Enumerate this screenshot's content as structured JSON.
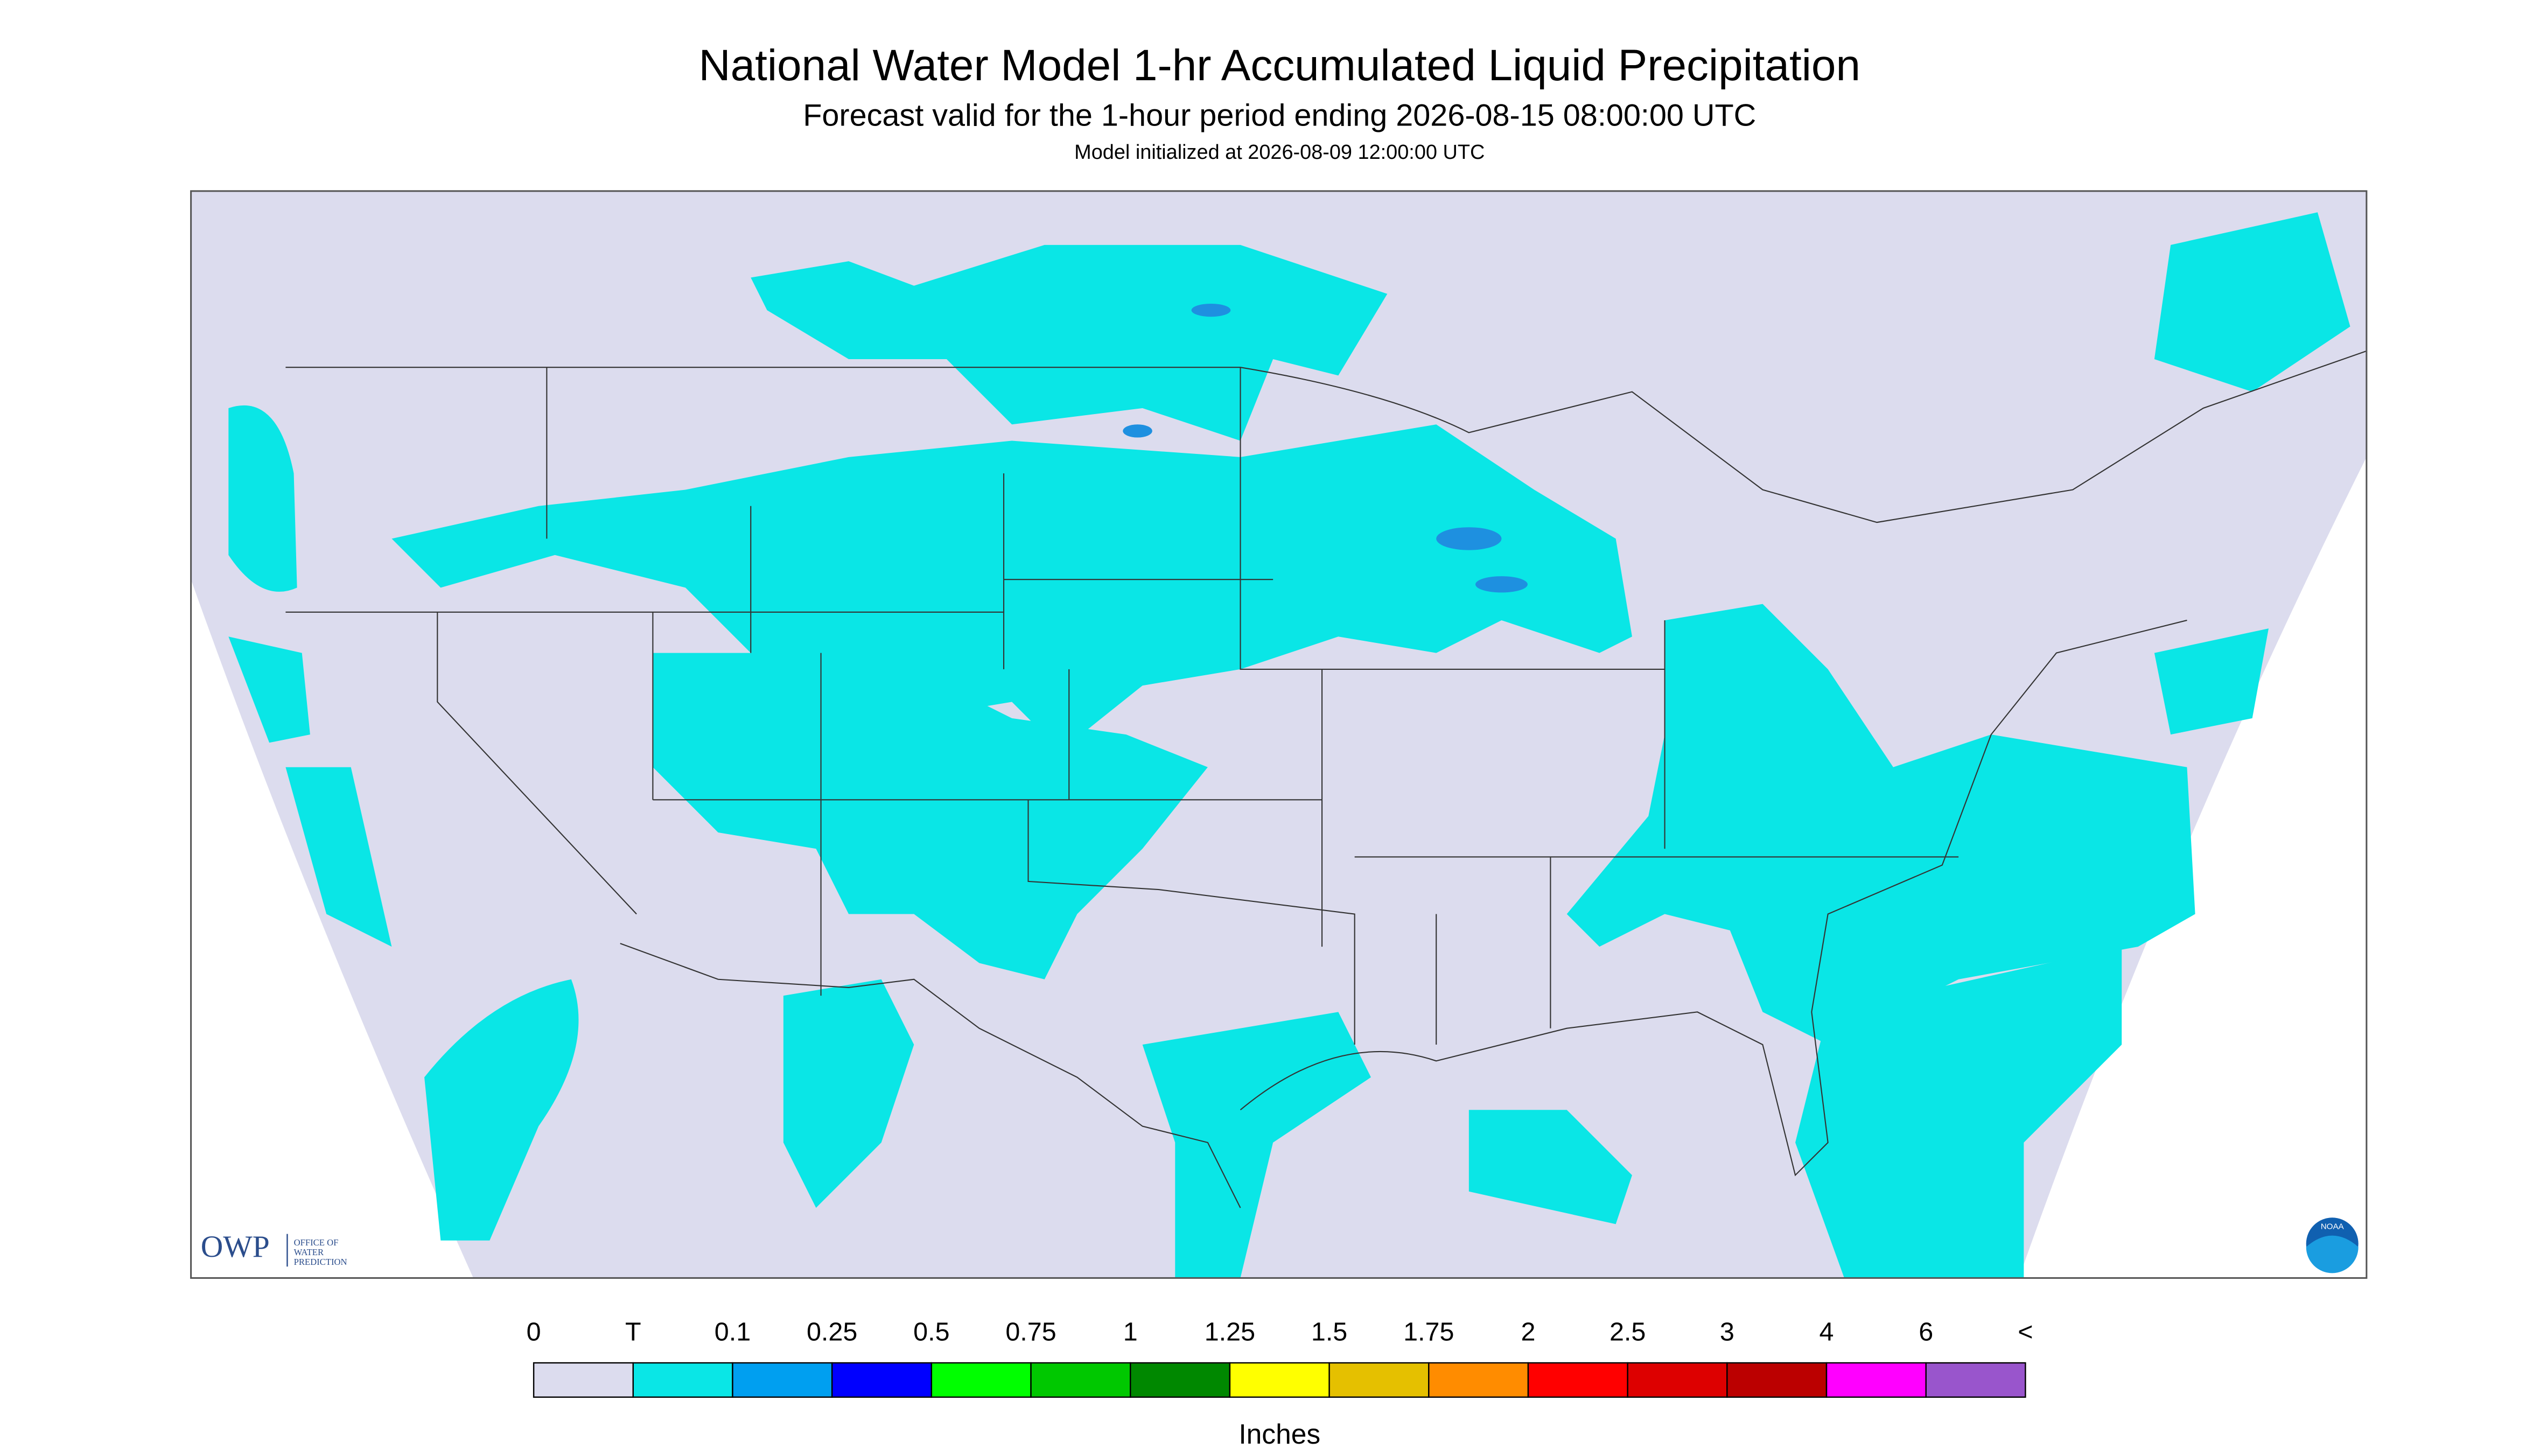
{
  "header": {
    "title": "National Water Model 1-hr Accumulated Liquid Precipitation",
    "subtitle": "Forecast valid for the 1-hour period ending 2026-08-15 08:00:00 UTC",
    "note": "Model initialized at 2026-08-09 12:00:00 UTC"
  },
  "logos": {
    "owp": "OWP",
    "owp_lines": [
      "OFFICE OF",
      "WATER",
      "PREDICTION"
    ],
    "noaa": "NOAA"
  },
  "legend": {
    "labels": [
      "0",
      "T",
      "0.1",
      "0.25",
      "0.5",
      "0.75",
      "1",
      "1.25",
      "1.5",
      "1.75",
      "2",
      "2.5",
      "3",
      "4",
      "6",
      "<"
    ],
    "colors": [
      "#dcdcee",
      "#0ae6e6",
      "#009ff0",
      "#0000ff",
      "#00ff00",
      "#00c800",
      "#008800",
      "#ffff00",
      "#e5c000",
      "#ff8c00",
      "#ff0000",
      "#dd0000",
      "#bb0000",
      "#ff00ff",
      "#9955cc"
    ],
    "units": "Inches"
  }
}
